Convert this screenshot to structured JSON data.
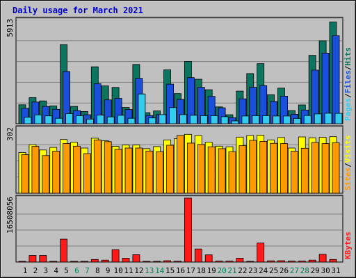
{
  "chart_data": {
    "type": "bar",
    "title": "Daily usage for March 2021",
    "categories": [
      "1",
      "2",
      "3",
      "4",
      "5",
      "6",
      "7",
      "8",
      "9",
      "10",
      "11",
      "12",
      "13",
      "14",
      "15",
      "16",
      "17",
      "18",
      "19",
      "20",
      "21",
      "22",
      "23",
      "24",
      "25",
      "26",
      "27",
      "28",
      "29",
      "30",
      "31"
    ],
    "weekend_days": [
      "6",
      "7",
      "13",
      "14",
      "20",
      "21",
      "27",
      "28"
    ],
    "panels": [
      {
        "id": "hits-files-pages",
        "ymax_label": "5913",
        "ylim": [
          0,
          5913
        ],
        "series": [
          {
            "name": "Hits",
            "color": "#0b7560",
            "values": [
              1080,
              1490,
              1300,
              1020,
              4520,
              990,
              700,
              3250,
              2160,
              2070,
              930,
              3380,
              630,
              730,
              3080,
              1720,
              3550,
              2540,
              1940,
              960,
              510,
              1860,
              2860,
              3430,
              1660,
              2030,
              750,
              1070,
              3900,
              4730,
              5800
            ]
          },
          {
            "name": "Files",
            "color": "#1a4fdb",
            "values": [
              880,
              1240,
              990,
              820,
              2980,
              750,
              510,
              2280,
              1360,
              1450,
              810,
              2590,
              470,
              520,
              2260,
              1390,
              2630,
              2080,
              1560,
              910,
              340,
              1420,
              2080,
              2180,
              1270,
              1570,
              540,
              780,
              3060,
              4030,
              5030
            ]
          },
          {
            "name": "Pages",
            "color": "#33ccee",
            "values": [
              370,
              500,
              450,
              310,
              580,
              460,
              260,
              490,
              390,
              480,
              310,
              1700,
              330,
              520,
              920,
              520,
              480,
              460,
              460,
              400,
              160,
              440,
              460,
              460,
              440,
              440,
              300,
              470,
              560,
              600,
              590
            ]
          }
        ]
      },
      {
        "id": "visits-sites",
        "ymax_label": "302",
        "ylim": [
          0,
          302
        ],
        "series": [
          {
            "name": "Visits",
            "color": "#ffff00",
            "values": [
              190,
              227,
              202,
              214,
              251,
              238,
              211,
              257,
              245,
              219,
              225,
              225,
              208,
              218,
              249,
              255,
              275,
              270,
              239,
              220,
              217,
              262,
              270,
              271,
              249,
              260,
              211,
              263,
              259,
              261,
              264
            ]
          },
          {
            "name": "Sites",
            "color": "#ff9900",
            "values": [
              180,
              219,
              176,
              196,
              232,
              220,
              185,
              249,
              241,
              205,
              211,
              211,
              197,
              194,
              224,
              270,
              234,
              228,
              217,
              208,
              194,
              222,
              247,
              242,
              233,
              232,
              196,
              210,
              237,
              232,
              236
            ]
          }
        ]
      },
      {
        "id": "kbytes",
        "ymax_label": "16508056",
        "ylim": [
          0,
          16508056
        ],
        "series": [
          {
            "name": "KBytes",
            "color": "#ff1a1a",
            "values": [
              160000,
              1700000,
              1700000,
              160000,
              5900000,
              160000,
              160000,
              670000,
              510000,
              3200000,
              1000000,
              1900000,
              160000,
              160000,
              340000,
              200000,
              16500000,
              3370000,
              1850000,
              240000,
              240000,
              1000000,
              160000,
              4900000,
              300000,
              340000,
              240000,
              240000,
              510000,
              2000000,
              670000
            ]
          }
        ]
      }
    ],
    "right_labels": [
      [
        {
          "text": "Pages",
          "color": "#33ccee"
        },
        {
          "text": "/",
          "color": "#000000"
        },
        {
          "text": "Files",
          "color": "#1a4fdb"
        },
        {
          "text": "/",
          "color": "#000000"
        },
        {
          "text": "Hits",
          "color": "#0b7560"
        }
      ],
      [
        {
          "text": "Sites",
          "color": "#ff9900"
        },
        {
          "text": "/",
          "color": "#000000"
        },
        {
          "text": "Visits",
          "color": "#ffff00"
        }
      ],
      [
        {
          "text": "KBytes",
          "color": "#ff1a1a"
        }
      ]
    ],
    "colors": {
      "title": "#0000cc",
      "weekday_label": "#000000",
      "weekend_label": "#00805a",
      "panel_bg": "#c0c0c0",
      "gridline": "#808080"
    }
  }
}
